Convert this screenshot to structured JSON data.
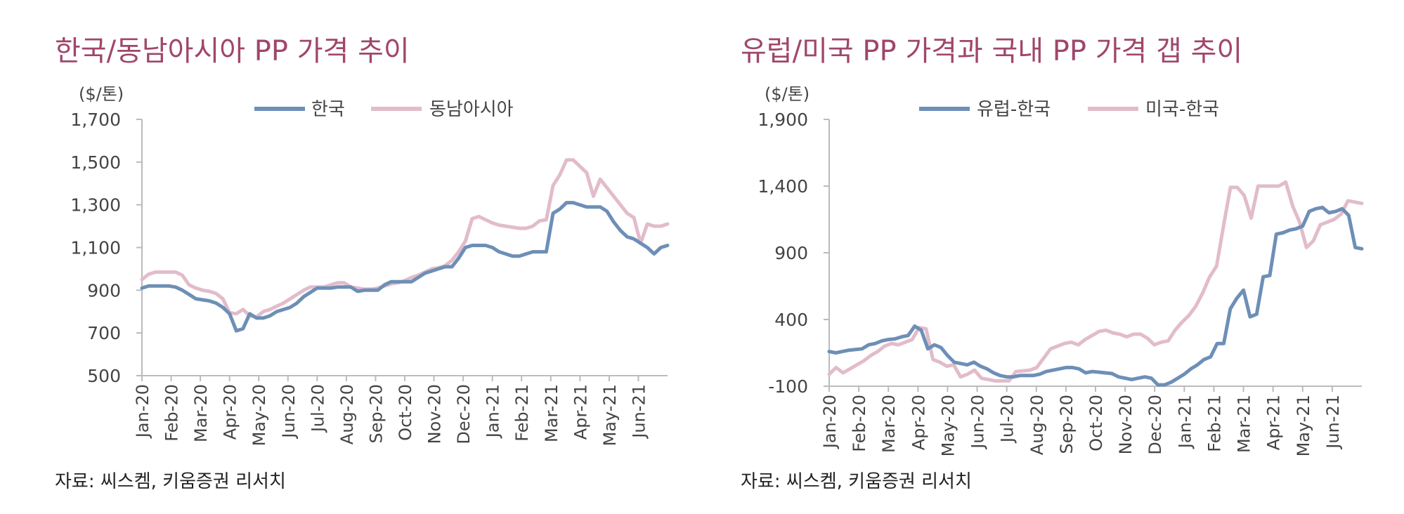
{
  "charts": [
    {
      "title": "한국/동남아시아 PP 가격 추이",
      "source": "자료: 씨스켐, 키움증권 리서치",
      "unit": "($/톤)"
    },
    {
      "title": "유럽/미국 PP 가격과 국내 PP 가격 갭 추이",
      "source": "자료: 씨스켐, 키움증권 리서치",
      "unit": "($/톤)"
    }
  ],
  "colors": {
    "blue": "#6d8fb7",
    "pink": "#e2bccb"
  },
  "chart_data": [
    {
      "type": "line",
      "title": "한국/동남아시아 PP 가격 추이",
      "ylabel": "($/톤)",
      "ylim": [
        500,
        1700
      ],
      "yticks": [
        500,
        700,
        900,
        1100,
        1300,
        1500,
        1700
      ],
      "ytick_labels": [
        "500",
        "700",
        "900",
        "1,100",
        "1,300",
        "1,500",
        "1,700"
      ],
      "xtick_labels": [
        "Jan-20",
        "Feb-20",
        "Mar-20",
        "Apr-20",
        "May-20",
        "Jun-20",
        "Jul-20",
        "Aug-20",
        "Sep-20",
        "Oct-20",
        "Nov-20",
        "Dec-20",
        "Jan-21",
        "Feb-21",
        "Mar-21",
        "Apr-21",
        "May-21",
        "Jun-21"
      ],
      "x_units": "weeks since Jan-20 (x tick every ~4.35 weeks)",
      "legend_position": "top",
      "series": [
        {
          "name": "한국",
          "color": "#6d8fb7",
          "values": [
            910,
            920,
            920,
            920,
            920,
            915,
            900,
            880,
            860,
            855,
            850,
            840,
            820,
            790,
            710,
            720,
            790,
            770,
            770,
            780,
            800,
            810,
            820,
            840,
            870,
            890,
            910,
            910,
            910,
            915,
            915,
            915,
            895,
            900,
            900,
            900,
            925,
            940,
            940,
            940,
            940,
            960,
            980,
            990,
            1000,
            1010,
            1010,
            1050,
            1100,
            1110,
            1110,
            1110,
            1100,
            1080,
            1070,
            1060,
            1060,
            1070,
            1080,
            1080,
            1080,
            1260,
            1280,
            1310,
            1310,
            1300,
            1290,
            1290,
            1290,
            1270,
            1220,
            1180,
            1150,
            1140,
            1120,
            1100,
            1070,
            1100,
            1110
          ]
        },
        {
          "name": "동남아시아",
          "color": "#e2bccb",
          "values": [
            950,
            975,
            985,
            985,
            985,
            985,
            970,
            925,
            910,
            900,
            895,
            885,
            860,
            795,
            790,
            810,
            780,
            775,
            800,
            810,
            825,
            840,
            860,
            880,
            900,
            915,
            915,
            915,
            925,
            935,
            935,
            915,
            910,
            905,
            905,
            910,
            920,
            930,
            935,
            945,
            960,
            970,
            985,
            1000,
            1005,
            1015,
            1040,
            1080,
            1130,
            1235,
            1245,
            1230,
            1215,
            1205,
            1200,
            1195,
            1190,
            1190,
            1200,
            1225,
            1230,
            1390,
            1440,
            1510,
            1510,
            1480,
            1450,
            1340,
            1420,
            1380,
            1340,
            1300,
            1260,
            1240,
            1120,
            1210,
            1200,
            1200,
            1210
          ]
        }
      ]
    },
    {
      "type": "line",
      "title": "유럽/미국 PP 가격과 국내 PP 가격 갭 추이",
      "ylabel": "($/톤)",
      "ylim": [
        -100,
        1900
      ],
      "yticks": [
        -100,
        400,
        900,
        1400,
        1900
      ],
      "ytick_labels": [
        "-100",
        "400",
        "900",
        "1,400",
        "1,900"
      ],
      "xtick_labels": [
        "Jan-20",
        "Feb-20",
        "Mar-20",
        "Apr-20",
        "May-20",
        "Jun-20",
        "Jul-20",
        "Aug-20",
        "Sep-20",
        "Oct-20",
        "Nov-20",
        "Dec-20",
        "Jan-21",
        "Feb-21",
        "Mar-21",
        "Apr-21",
        "May-21",
        "Jun-21"
      ],
      "x_units": "weeks since Jan-20 (x tick every ~4.35 weeks)",
      "legend_position": "top",
      "series": [
        {
          "name": "유럽-한국",
          "color": "#6d8fb7",
          "values": [
            160,
            150,
            160,
            170,
            175,
            180,
            210,
            220,
            240,
            250,
            255,
            270,
            280,
            350,
            320,
            180,
            210,
            190,
            130,
            80,
            70,
            60,
            80,
            50,
            30,
            0,
            -20,
            -30,
            -30,
            -20,
            -20,
            -20,
            -10,
            10,
            20,
            30,
            40,
            40,
            30,
            0,
            10,
            5,
            0,
            -5,
            -30,
            -40,
            -50,
            -40,
            -30,
            -40,
            -90,
            -90,
            -70,
            -40,
            -10,
            30,
            60,
            100,
            120,
            220,
            220,
            480,
            560,
            620,
            420,
            440,
            720,
            730,
            1040,
            1050,
            1070,
            1080,
            1100,
            1210,
            1230,
            1240,
            1200,
            1210,
            1230,
            1180,
            940,
            930
          ]
        },
        {
          "name": "미국-한국",
          "color": "#e2bccb",
          "values": [
            -10,
            40,
            0,
            30,
            60,
            90,
            130,
            160,
            200,
            220,
            210,
            230,
            250,
            340,
            330,
            100,
            80,
            50,
            60,
            -30,
            -10,
            20,
            -40,
            -50,
            -60,
            -60,
            -60,
            10,
            15,
            20,
            40,
            110,
            180,
            200,
            220,
            230,
            210,
            250,
            280,
            310,
            320,
            300,
            290,
            270,
            290,
            290,
            260,
            210,
            230,
            240,
            320,
            380,
            430,
            500,
            600,
            720,
            800,
            1100,
            1390,
            1390,
            1330,
            1160,
            1400,
            1400,
            1400,
            1400,
            1430,
            1250,
            1130,
            940,
            990,
            1110,
            1130,
            1150,
            1190,
            1290,
            1280,
            1270
          ]
        }
      ]
    }
  ]
}
